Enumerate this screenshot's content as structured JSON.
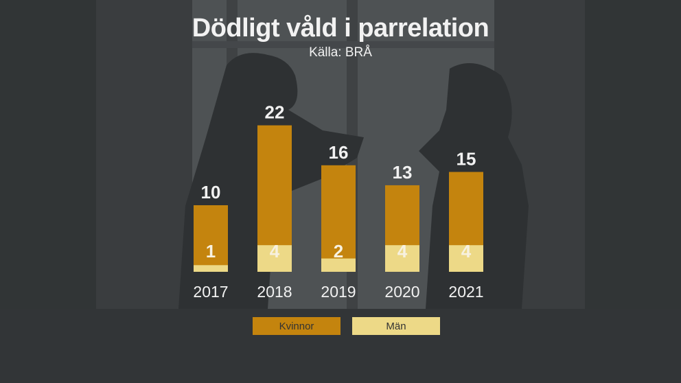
{
  "header": {
    "title": "Dödligt våld i parrelation",
    "source": "Källa: BRÅ"
  },
  "colors": {
    "women": "#c4840e",
    "men": "#edd987",
    "text": "#f2f2f2",
    "background": "#3a3d3f"
  },
  "legend": {
    "women_label": "Kvinnor",
    "men_label": "Män"
  },
  "chart_data": {
    "type": "bar",
    "stacked": true,
    "categories": [
      "2017",
      "2018",
      "2019",
      "2020",
      "2021"
    ],
    "series": [
      {
        "name": "Män",
        "values": [
          1,
          4,
          2,
          4,
          4
        ]
      },
      {
        "name": "Kvinnor",
        "values": [
          10,
          22,
          16,
          13,
          15
        ]
      }
    ],
    "title": "Dödligt våld i parrelation",
    "subtitle": "Källa: BRÅ",
    "legend_position": "bottom",
    "grid": false
  }
}
